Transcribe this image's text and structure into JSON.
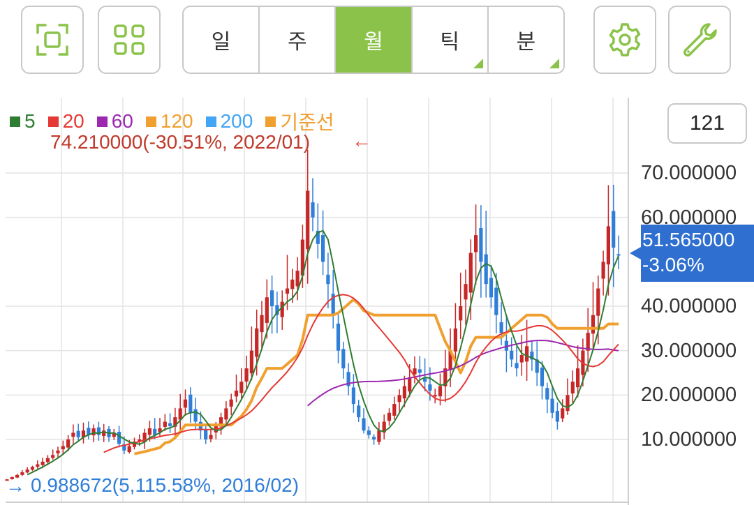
{
  "toolbar": {
    "segments": [
      {
        "label": "일",
        "active": false,
        "corner": false
      },
      {
        "label": "주",
        "active": false,
        "corner": false
      },
      {
        "label": "월",
        "active": true,
        "corner": false
      },
      {
        "label": "틱",
        "active": false,
        "corner": true
      },
      {
        "label": "분",
        "active": false,
        "corner": true
      }
    ],
    "accent": "#8bc34a"
  },
  "count": "121",
  "legend": [
    {
      "label": "5",
      "color": "#2e7d32"
    },
    {
      "label": "20",
      "color": "#e53935"
    },
    {
      "label": "60",
      "color": "#9c27b0"
    },
    {
      "label": "120",
      "color": "#f0a030"
    },
    {
      "label": "200",
      "color": "#42a5f5"
    },
    {
      "label": "기준선",
      "color": "#f0a030"
    }
  ],
  "high_label": "74.210000(-30.51%, 2022/01)",
  "low_label": "0.988672(5,115.58%, 2016/02)",
  "high_arrow": "←",
  "low_arrow": "→",
  "current": {
    "price": "51.565000",
    "change": "-3.06%",
    "color": "#2f6fd0"
  },
  "chart_data": {
    "type": "candlestick",
    "y_ticks": [
      "70.000000",
      "60.000000",
      "40.000000",
      "30.000000",
      "20.000000",
      "10.000000"
    ],
    "y_tick_values": [
      70,
      60,
      40,
      30,
      20,
      10
    ],
    "ylim": [
      0,
      80
    ],
    "last_close": 51.565,
    "high": 74.21,
    "low": 0.988672,
    "up_color": "#c62828",
    "down_color": "#2f7ed8",
    "closes": [
      1.0,
      1.5,
      2.0,
      2.6,
      3.2,
      3.8,
      4.4,
      5.0,
      5.8,
      6.5,
      7.5,
      8.5,
      10.0,
      11.5,
      10.5,
      12.0,
      11.0,
      12.5,
      11.0,
      12.0,
      10.5,
      11.5,
      9.0,
      7.5,
      8.5,
      9.5,
      10.0,
      11.5,
      12.5,
      11.0,
      12.5,
      14.0,
      13.0,
      15.0,
      17.0,
      19.0,
      16.0,
      14.0,
      12.0,
      10.0,
      11.0,
      13.0,
      15.0,
      17.0,
      19.0,
      21.0,
      23.0,
      26.0,
      30.0,
      35.0,
      38.0,
      42.0,
      40.0,
      38.0,
      41.0,
      44.0,
      46.0,
      48.0,
      55.0,
      66.0,
      60.0,
      54.0,
      50.0,
      45.0,
      38.0,
      30.0,
      26.0,
      22.0,
      18.0,
      15.0,
      12.0,
      11.0,
      10.0,
      12.0,
      14.0,
      16.0,
      18.0,
      20.0,
      22.0,
      24.0,
      26.0,
      25.0,
      23.0,
      21.0,
      20.0,
      22.0,
      26.0,
      30.0,
      35.0,
      40.0,
      45.0,
      52.0,
      56.0,
      50.0,
      45.0,
      42.0,
      38.0,
      34.0,
      30.0,
      28.0,
      26.0,
      29.0,
      31.0,
      28.0,
      25.0,
      22.0,
      19.0,
      16.0,
      14.0,
      17.0,
      20.0,
      23.0,
      26.0,
      30.0,
      34.0,
      38.0,
      44.0,
      50.0,
      58.0,
      53.2,
      51.565
    ]
  }
}
